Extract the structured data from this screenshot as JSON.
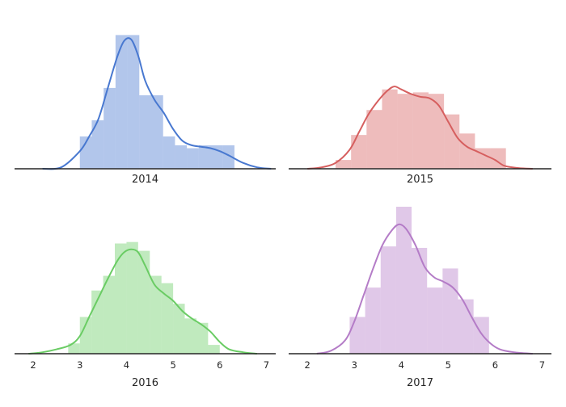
{
  "chart_data": [
    {
      "type": "histogram",
      "xlabel": "2014",
      "x_range": [
        1.6,
        7.2
      ],
      "show_xticks": false,
      "color": "#4878d0",
      "bin_width": 0.255,
      "bins": [
        {
          "x0": 3.0,
          "density": 0.22
        },
        {
          "x0": 3.255,
          "density": 0.33
        },
        {
          "x0": 3.51,
          "density": 0.55
        },
        {
          "x0": 3.765,
          "density": 0.91
        },
        {
          "x0": 4.02,
          "density": 0.91
        },
        {
          "x0": 4.275,
          "density": 0.5
        },
        {
          "x0": 4.53,
          "density": 0.5
        },
        {
          "x0": 4.785,
          "density": 0.22
        },
        {
          "x0": 5.04,
          "density": 0.16
        },
        {
          "x0": 5.295,
          "density": 0.14
        },
        {
          "x0": 5.55,
          "density": 0.16
        },
        {
          "x0": 5.805,
          "density": 0.16
        },
        {
          "x0": 6.06,
          "density": 0.16
        }
      ],
      "kde": {
        "x": [
          2.2,
          2.6,
          3.0,
          3.2,
          3.4,
          3.6,
          3.8,
          3.95,
          4.1,
          4.25,
          4.4,
          4.6,
          4.8,
          5.0,
          5.2,
          5.4,
          5.6,
          5.8,
          6.0,
          6.2,
          6.5,
          6.8,
          7.1
        ],
        "y": [
          0.0,
          0.01,
          0.12,
          0.22,
          0.34,
          0.55,
          0.76,
          0.87,
          0.88,
          0.77,
          0.6,
          0.47,
          0.38,
          0.27,
          0.19,
          0.16,
          0.15,
          0.14,
          0.12,
          0.09,
          0.04,
          0.01,
          0.0
        ]
      }
    },
    {
      "type": "histogram",
      "xlabel": "2015",
      "x_range": [
        1.6,
        7.2
      ],
      "show_xticks": false,
      "color": "#d65f5f",
      "bin_width": 0.33,
      "bins": [
        {
          "x0": 2.6,
          "density": 0.06
        },
        {
          "x0": 2.93,
          "density": 0.23
        },
        {
          "x0": 3.26,
          "density": 0.4
        },
        {
          "x0": 3.59,
          "density": 0.54
        },
        {
          "x0": 3.92,
          "density": 0.51
        },
        {
          "x0": 4.25,
          "density": 0.52
        },
        {
          "x0": 4.58,
          "density": 0.51
        },
        {
          "x0": 4.91,
          "density": 0.37
        },
        {
          "x0": 5.24,
          "density": 0.24
        },
        {
          "x0": 5.57,
          "density": 0.14
        },
        {
          "x0": 5.9,
          "density": 0.14
        }
      ],
      "kde": {
        "x": [
          2.0,
          2.3,
          2.6,
          2.9,
          3.1,
          3.3,
          3.5,
          3.7,
          3.85,
          4.0,
          4.2,
          4.4,
          4.6,
          4.8,
          5.0,
          5.2,
          5.4,
          5.6,
          5.8,
          6.0,
          6.2,
          6.5,
          6.8
        ],
        "y": [
          0.0,
          0.01,
          0.04,
          0.13,
          0.25,
          0.37,
          0.46,
          0.53,
          0.56,
          0.54,
          0.51,
          0.49,
          0.48,
          0.43,
          0.32,
          0.21,
          0.15,
          0.12,
          0.09,
          0.06,
          0.02,
          0.005,
          0.0
        ]
      }
    },
    {
      "type": "histogram",
      "xlabel": "2016",
      "x_range": [
        1.6,
        7.2
      ],
      "show_xticks": true,
      "xticks": [
        "2",
        "3",
        "4",
        "5",
        "6",
        "7"
      ],
      "color": "#6acc64",
      "bin_width": 0.25,
      "bins": [
        {
          "x0": 2.75,
          "density": 0.07
        },
        {
          "x0": 3.0,
          "density": 0.25
        },
        {
          "x0": 3.25,
          "density": 0.43
        },
        {
          "x0": 3.5,
          "density": 0.53
        },
        {
          "x0": 3.75,
          "density": 0.75
        },
        {
          "x0": 4.0,
          "density": 0.76
        },
        {
          "x0": 4.25,
          "density": 0.7
        },
        {
          "x0": 4.5,
          "density": 0.53
        },
        {
          "x0": 4.75,
          "density": 0.48
        },
        {
          "x0": 5.0,
          "density": 0.34
        },
        {
          "x0": 5.25,
          "density": 0.24
        },
        {
          "x0": 5.5,
          "density": 0.21
        },
        {
          "x0": 5.75,
          "density": 0.06
        }
      ],
      "kde": {
        "x": [
          1.9,
          2.2,
          2.5,
          2.8,
          3.0,
          3.2,
          3.4,
          3.6,
          3.8,
          3.95,
          4.1,
          4.25,
          4.4,
          4.6,
          4.8,
          5.0,
          5.2,
          5.4,
          5.6,
          5.8,
          6.0,
          6.2,
          6.5,
          6.8
        ],
        "y": [
          0.0,
          0.01,
          0.03,
          0.06,
          0.12,
          0.25,
          0.38,
          0.51,
          0.63,
          0.69,
          0.71,
          0.69,
          0.6,
          0.47,
          0.41,
          0.36,
          0.29,
          0.24,
          0.2,
          0.15,
          0.08,
          0.03,
          0.01,
          0.0
        ]
      }
    },
    {
      "type": "histogram",
      "xlabel": "2017",
      "x_range": [
        1.6,
        7.2
      ],
      "show_xticks": true,
      "xticks": [
        "2",
        "3",
        "4",
        "5",
        "6",
        "7"
      ],
      "color": "#b47cc7",
      "bin_width": 0.33,
      "bins": [
        {
          "x0": 2.9,
          "density": 0.25
        },
        {
          "x0": 3.23,
          "density": 0.45
        },
        {
          "x0": 3.56,
          "density": 0.73
        },
        {
          "x0": 3.89,
          "density": 1.0
        },
        {
          "x0": 4.22,
          "density": 0.72
        },
        {
          "x0": 4.55,
          "density": 0.45
        },
        {
          "x0": 4.88,
          "density": 0.58
        },
        {
          "x0": 5.21,
          "density": 0.37
        },
        {
          "x0": 5.54,
          "density": 0.25
        }
      ],
      "kde": {
        "x": [
          2.2,
          2.5,
          2.8,
          3.0,
          3.2,
          3.4,
          3.6,
          3.8,
          3.95,
          4.1,
          4.3,
          4.5,
          4.7,
          4.9,
          5.1,
          5.3,
          5.5,
          5.7,
          5.9,
          6.1,
          6.4,
          6.8
        ],
        "y": [
          0.0,
          0.02,
          0.09,
          0.22,
          0.4,
          0.58,
          0.74,
          0.84,
          0.88,
          0.85,
          0.74,
          0.59,
          0.52,
          0.49,
          0.45,
          0.37,
          0.25,
          0.14,
          0.07,
          0.03,
          0.01,
          0.0
        ]
      }
    }
  ]
}
